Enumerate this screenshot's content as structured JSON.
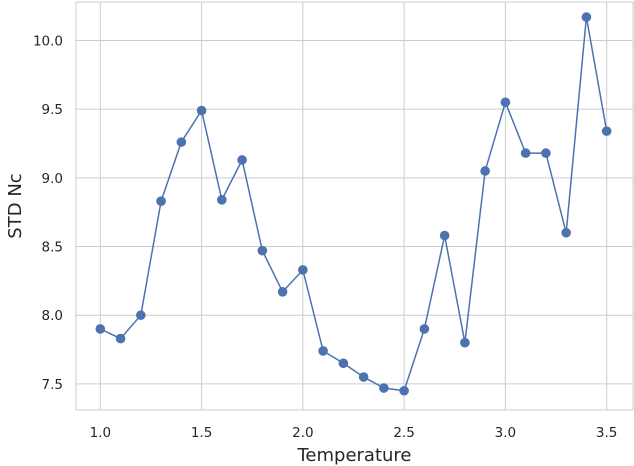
{
  "chart_data": {
    "type": "line",
    "xlabel": "Temperature",
    "ylabel": "STD Nc",
    "xlim": [
      0.88,
      3.63
    ],
    "ylim": [
      7.31,
      10.28
    ],
    "xticks": [
      1.0,
      1.5,
      2.0,
      2.5,
      3.0,
      3.5
    ],
    "xtick_labels": [
      "1.0",
      "1.5",
      "2.0",
      "2.5",
      "3.0",
      "3.5"
    ],
    "yticks": [
      7.5,
      8.0,
      8.5,
      9.0,
      9.5,
      10.0
    ],
    "ytick_labels": [
      "7.5",
      "8.0",
      "8.5",
      "9.0",
      "9.5",
      "10.0"
    ],
    "grid": true,
    "series": [
      {
        "color": "#4c72b0",
        "marker": "circle",
        "x": [
          1.0,
          1.1,
          1.2,
          1.3,
          1.4,
          1.5,
          1.6,
          1.7,
          1.8,
          1.9,
          2.0,
          2.1,
          2.2,
          2.3,
          2.4,
          2.5,
          2.6,
          2.7,
          2.8,
          2.9,
          3.0,
          3.1,
          3.2,
          3.3,
          3.4,
          3.5
        ],
        "y": [
          7.9,
          7.83,
          8.0,
          8.83,
          9.26,
          9.49,
          8.84,
          9.13,
          8.47,
          8.17,
          8.33,
          7.74,
          7.65,
          7.55,
          7.47,
          7.45,
          7.9,
          8.58,
          7.8,
          9.05,
          9.55,
          9.18,
          9.18,
          8.6,
          10.17,
          9.34
        ]
      }
    ]
  }
}
